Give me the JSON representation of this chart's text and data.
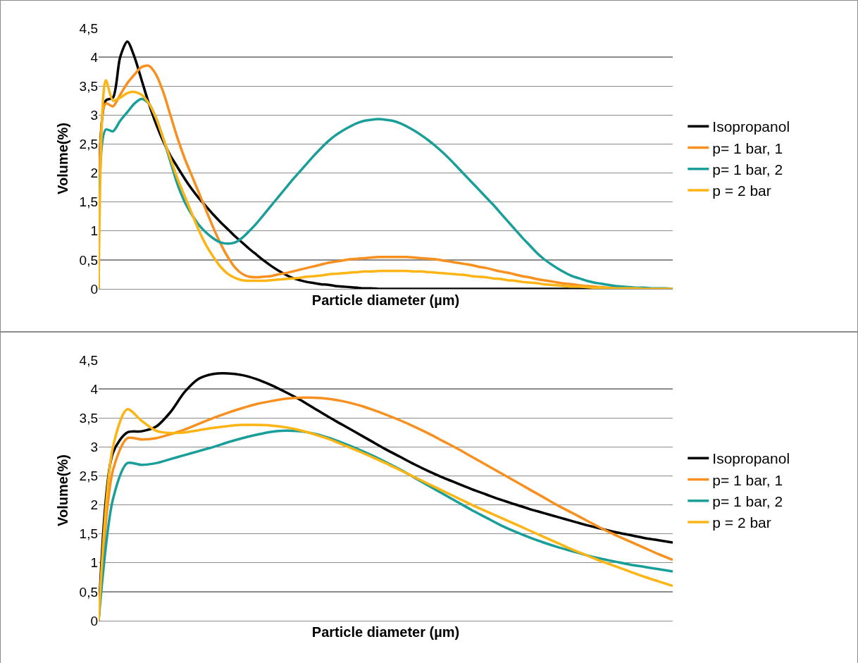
{
  "chart_data": [
    {
      "type": "line",
      "xlabel": "Particle diameter (µm)",
      "ylabel": "Volume(%)",
      "categories": [
        null,
        null,
        null,
        null,
        null,
        null,
        null,
        null,
        null,
        null,
        null,
        null,
        null,
        null,
        null,
        null,
        null,
        null,
        null,
        null,
        null,
        null,
        null,
        null,
        null,
        null,
        null,
        null,
        null,
        null,
        null,
        null,
        null,
        null,
        null,
        null,
        null,
        null,
        null,
        null,
        null,
        null,
        null,
        null,
        null,
        null,
        null,
        null,
        null,
        null,
        null,
        null,
        null,
        null,
        null,
        null,
        null,
        null,
        null,
        null,
        null,
        null,
        null,
        null,
        null,
        null,
        null,
        null,
        null,
        null,
        null,
        null,
        null,
        null,
        null,
        null,
        null,
        null,
        null,
        null,
        null
      ],
      "ylim": [
        0,
        4.5
      ],
      "yticks": [
        0,
        {
          "value": 0.5,
          "label": "0,5"
        },
        1,
        {
          "value": 1.5,
          "label": "1,5"
        },
        2,
        {
          "value": 2.5,
          "label": "2,5"
        },
        3,
        {
          "value": 3.5,
          "label": "3,5"
        },
        4,
        {
          "value": 4.5,
          "label": "4,5"
        }
      ],
      "grid": "y",
      "legend": "right",
      "tick_labels": "y",
      "line_style": "solid",
      "series": [
        {
          "name": "Isopropanol",
          "color": "#000000",
          "values": [
            0,
            3.25,
            3.3,
            4.0,
            4.27,
            4.0,
            3.6,
            3.2,
            2.85,
            2.55,
            2.3,
            2.1,
            1.9,
            1.72,
            1.56,
            1.42,
            1.28,
            1.15,
            1.03,
            0.91,
            0.8,
            0.69,
            0.59,
            0.49,
            0.4,
            0.32,
            0.25,
            0.19,
            0.15,
            0.12,
            0.1,
            0.08,
            0.07,
            0.05,
            0.04,
            0.03,
            0.02,
            0.01,
            0.01,
            0,
            0,
            0,
            0,
            0,
            0,
            0,
            0,
            0,
            0,
            0,
            0,
            0,
            0,
            0,
            0,
            0,
            0,
            0,
            0,
            0,
            0,
            0,
            0,
            0,
            0,
            0,
            0,
            0,
            0,
            0,
            0,
            0,
            0,
            0,
            0,
            0,
            0,
            0,
            0,
            0,
            0
          ]
        },
        {
          "name": "p= 1 bar, 1",
          "color": "#f7901e",
          "values": [
            0,
            3.2,
            3.15,
            3.35,
            3.55,
            3.7,
            3.83,
            3.85,
            3.7,
            3.4,
            3.0,
            2.6,
            2.25,
            1.95,
            1.65,
            1.35,
            1.05,
            0.78,
            0.55,
            0.37,
            0.26,
            0.21,
            0.2,
            0.21,
            0.22,
            0.25,
            0.27,
            0.3,
            0.33,
            0.36,
            0.39,
            0.42,
            0.45,
            0.47,
            0.49,
            0.51,
            0.52,
            0.53,
            0.54,
            0.55,
            0.55,
            0.55,
            0.55,
            0.55,
            0.54,
            0.53,
            0.52,
            0.51,
            0.49,
            0.47,
            0.45,
            0.43,
            0.41,
            0.38,
            0.36,
            0.33,
            0.3,
            0.28,
            0.25,
            0.22,
            0.2,
            0.17,
            0.15,
            0.13,
            0.11,
            0.09,
            0.08,
            0.06,
            0.05,
            0.04,
            0.03,
            0.02,
            0.02,
            0.01,
            0.01,
            0.01,
            0,
            0,
            0,
            0,
            0
          ]
        },
        {
          "name": "p= 1 bar, 2",
          "color": "#1a9e99",
          "values": [
            0,
            2.75,
            2.72,
            2.9,
            3.05,
            3.2,
            3.28,
            3.2,
            2.95,
            2.6,
            2.2,
            1.8,
            1.5,
            1.28,
            1.1,
            0.97,
            0.87,
            0.8,
            0.78,
            0.8,
            0.88,
            1.0,
            1.13,
            1.28,
            1.43,
            1.58,
            1.73,
            1.88,
            2.02,
            2.16,
            2.3,
            2.43,
            2.55,
            2.65,
            2.73,
            2.8,
            2.86,
            2.9,
            2.92,
            2.93,
            2.92,
            2.9,
            2.86,
            2.8,
            2.73,
            2.65,
            2.56,
            2.46,
            2.35,
            2.23,
            2.1,
            1.97,
            1.84,
            1.71,
            1.58,
            1.45,
            1.31,
            1.17,
            1.03,
            0.89,
            0.76,
            0.63,
            0.52,
            0.43,
            0.35,
            0.28,
            0.22,
            0.18,
            0.14,
            0.11,
            0.09,
            0.07,
            0.05,
            0.04,
            0.03,
            0.02,
            0.02,
            0.01,
            0.01,
            0.01,
            0
          ]
        },
        {
          "name": "p = 2 bar",
          "color": "#fdb515",
          "values": [
            0,
            3.6,
            3.25,
            3.3,
            3.38,
            3.4,
            3.35,
            3.2,
            2.95,
            2.6,
            2.25,
            1.9,
            1.6,
            1.3,
            1.0,
            0.75,
            0.55,
            0.38,
            0.26,
            0.19,
            0.15,
            0.14,
            0.14,
            0.14,
            0.15,
            0.16,
            0.17,
            0.18,
            0.19,
            0.21,
            0.22,
            0.23,
            0.25,
            0.26,
            0.27,
            0.28,
            0.29,
            0.3,
            0.3,
            0.31,
            0.31,
            0.31,
            0.31,
            0.31,
            0.3,
            0.3,
            0.29,
            0.28,
            0.27,
            0.26,
            0.25,
            0.24,
            0.22,
            0.21,
            0.2,
            0.18,
            0.17,
            0.15,
            0.14,
            0.12,
            0.11,
            0.1,
            0.08,
            0.07,
            0.06,
            0.05,
            0.04,
            0.04,
            0.03,
            0.02,
            0.02,
            0.01,
            0.01,
            0.01,
            0.01,
            0.01,
            0,
            0,
            0,
            0,
            0
          ]
        }
      ]
    },
    {
      "type": "line",
      "xlabel": "Particle diameter (µm)",
      "ylabel": "Volume(%)",
      "categories": [
        null,
        null,
        null,
        null,
        null,
        null,
        null,
        null,
        null,
        null,
        null,
        null,
        null,
        null,
        null,
        null,
        null,
        null,
        null,
        null,
        null,
        null,
        null,
        null,
        null,
        null,
        null,
        null,
        null,
        null,
        null,
        null,
        null,
        null,
        null,
        null,
        null,
        null,
        null,
        null,
        null
      ],
      "ylim": [
        0,
        4.5
      ],
      "yticks": [
        0,
        {
          "value": 0.5,
          "label": "0,5"
        },
        1,
        {
          "value": 1.5,
          "label": "1,5"
        },
        2,
        {
          "value": 2.5,
          "label": "2,5"
        },
        3,
        {
          "value": 3.5,
          "label": "3,5"
        },
        4,
        {
          "value": 4.5,
          "label": "4,5"
        }
      ],
      "grid": "y",
      "legend": "right",
      "tick_labels": "y",
      "line_style": "solid",
      "series": [
        {
          "name": "Isopropanol",
          "color": "#000000",
          "values": [
            0,
            2.9,
            3.25,
            3.27,
            3.35,
            3.6,
            3.95,
            4.18,
            4.26,
            4.27,
            4.24,
            4.17,
            4.07,
            3.95,
            3.82,
            3.67,
            3.52,
            3.38,
            3.24,
            3.1,
            2.96,
            2.83,
            2.7,
            2.58,
            2.47,
            2.37,
            2.27,
            2.18,
            2.09,
            2.01,
            1.93,
            1.86,
            1.79,
            1.72,
            1.65,
            1.59,
            1.53,
            1.48,
            1.43,
            1.39,
            1.35
          ]
        },
        {
          "name": "p= 1 bar, 1",
          "color": "#f7901e",
          "values": [
            0,
            2.6,
            3.15,
            3.13,
            3.15,
            3.22,
            3.3,
            3.4,
            3.5,
            3.59,
            3.67,
            3.74,
            3.79,
            3.83,
            3.85,
            3.85,
            3.83,
            3.79,
            3.73,
            3.65,
            3.56,
            3.46,
            3.35,
            3.23,
            3.1,
            2.97,
            2.83,
            2.69,
            2.55,
            2.41,
            2.27,
            2.13,
            1.99,
            1.86,
            1.73,
            1.6,
            1.48,
            1.37,
            1.26,
            1.15,
            1.05
          ]
        },
        {
          "name": "p= 1 bar, 2",
          "color": "#1a9e99",
          "values": [
            0,
            2.1,
            2.72,
            2.69,
            2.72,
            2.79,
            2.86,
            2.93,
            3.0,
            3.08,
            3.15,
            3.21,
            3.26,
            3.28,
            3.27,
            3.23,
            3.16,
            3.07,
            2.97,
            2.86,
            2.74,
            2.61,
            2.47,
            2.33,
            2.19,
            2.05,
            1.91,
            1.78,
            1.65,
            1.54,
            1.44,
            1.35,
            1.27,
            1.2,
            1.13,
            1.07,
            1.02,
            0.97,
            0.93,
            0.89,
            0.85
          ]
        },
        {
          "name": "p = 2 bar",
          "color": "#fdb515",
          "values": [
            0,
            3.0,
            3.65,
            3.45,
            3.28,
            3.24,
            3.25,
            3.29,
            3.33,
            3.36,
            3.38,
            3.38,
            3.37,
            3.34,
            3.29,
            3.22,
            3.14,
            3.04,
            2.94,
            2.83,
            2.72,
            2.6,
            2.48,
            2.36,
            2.24,
            2.12,
            2.0,
            1.89,
            1.78,
            1.67,
            1.56,
            1.45,
            1.34,
            1.23,
            1.13,
            1.03,
            0.94,
            0.85,
            0.76,
            0.68,
            0.6
          ]
        }
      ]
    }
  ]
}
